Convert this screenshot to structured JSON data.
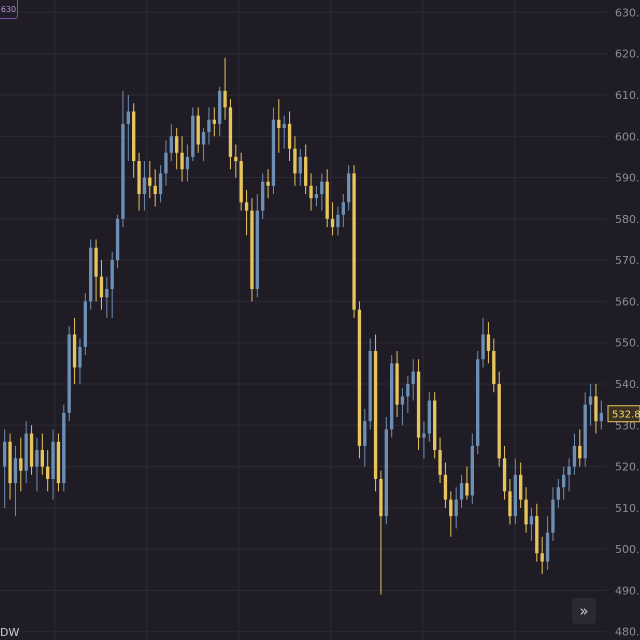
{
  "chart_data": {
    "type": "candlestick",
    "y_ticks": [
      "480.00",
      "490.00",
      "500.00",
      "510.00",
      "520.00",
      "530.00",
      "540.00",
      "550.00",
      "560.00",
      "570.00",
      "580.00",
      "590.00",
      "600.00",
      "610.00",
      "620.00",
      "630.00"
    ],
    "ylim": [
      478,
      633
    ],
    "grid": true,
    "colors": {
      "up": "#6e8fb4",
      "down": "#e8c45c",
      "background": "#1f1c25",
      "grid": "#2e2a35"
    },
    "last_price_label": "532.8",
    "candles": [
      {
        "o": 520,
        "h": 529,
        "l": 510,
        "c": 526
      },
      {
        "o": 526,
        "h": 528,
        "l": 512,
        "c": 516
      },
      {
        "o": 516,
        "h": 525,
        "l": 508,
        "c": 522
      },
      {
        "o": 522,
        "h": 527,
        "l": 514,
        "c": 519
      },
      {
        "o": 519,
        "h": 531,
        "l": 516,
        "c": 528
      },
      {
        "o": 528,
        "h": 530,
        "l": 518,
        "c": 520
      },
      {
        "o": 520,
        "h": 527,
        "l": 514,
        "c": 524
      },
      {
        "o": 524,
        "h": 528,
        "l": 518,
        "c": 520
      },
      {
        "o": 520,
        "h": 524,
        "l": 514,
        "c": 517
      },
      {
        "o": 517,
        "h": 529,
        "l": 512,
        "c": 526
      },
      {
        "o": 526,
        "h": 528,
        "l": 514,
        "c": 516
      },
      {
        "o": 516,
        "h": 535,
        "l": 514,
        "c": 533
      },
      {
        "o": 533,
        "h": 554,
        "l": 531,
        "c": 552
      },
      {
        "o": 552,
        "h": 556,
        "l": 540,
        "c": 544
      },
      {
        "o": 544,
        "h": 551,
        "l": 540,
        "c": 549
      },
      {
        "o": 549,
        "h": 562,
        "l": 547,
        "c": 560
      },
      {
        "o": 560,
        "h": 575,
        "l": 558,
        "c": 573
      },
      {
        "o": 573,
        "h": 575,
        "l": 560,
        "c": 566
      },
      {
        "o": 566,
        "h": 570,
        "l": 558,
        "c": 561
      },
      {
        "o": 561,
        "h": 566,
        "l": 556,
        "c": 563
      },
      {
        "o": 563,
        "h": 572,
        "l": 556,
        "c": 570
      },
      {
        "o": 570,
        "h": 581,
        "l": 568,
        "c": 580
      },
      {
        "o": 580,
        "h": 611,
        "l": 578,
        "c": 603
      },
      {
        "o": 603,
        "h": 610,
        "l": 594,
        "c": 606
      },
      {
        "o": 606,
        "h": 608,
        "l": 590,
        "c": 594
      },
      {
        "o": 594,
        "h": 596,
        "l": 582,
        "c": 586
      },
      {
        "o": 586,
        "h": 594,
        "l": 582,
        "c": 590
      },
      {
        "o": 590,
        "h": 594,
        "l": 585,
        "c": 588
      },
      {
        "o": 588,
        "h": 592,
        "l": 583,
        "c": 586
      },
      {
        "o": 586,
        "h": 593,
        "l": 584,
        "c": 591
      },
      {
        "o": 591,
        "h": 599,
        "l": 588,
        "c": 596
      },
      {
        "o": 596,
        "h": 603,
        "l": 594,
        "c": 600
      },
      {
        "o": 600,
        "h": 602,
        "l": 592,
        "c": 596
      },
      {
        "o": 596,
        "h": 600,
        "l": 589,
        "c": 592
      },
      {
        "o": 592,
        "h": 598,
        "l": 589,
        "c": 595
      },
      {
        "o": 595,
        "h": 607,
        "l": 594,
        "c": 605
      },
      {
        "o": 605,
        "h": 607,
        "l": 596,
        "c": 598
      },
      {
        "o": 598,
        "h": 602,
        "l": 594,
        "c": 601
      },
      {
        "o": 601,
        "h": 607,
        "l": 598,
        "c": 604
      },
      {
        "o": 604,
        "h": 607,
        "l": 600,
        "c": 603
      },
      {
        "o": 603,
        "h": 612,
        "l": 600,
        "c": 611
      },
      {
        "o": 611,
        "h": 619,
        "l": 604,
        "c": 607
      },
      {
        "o": 607,
        "h": 609,
        "l": 592,
        "c": 595
      },
      {
        "o": 595,
        "h": 598,
        "l": 590,
        "c": 594
      },
      {
        "o": 594,
        "h": 596,
        "l": 582,
        "c": 584
      },
      {
        "o": 584,
        "h": 587,
        "l": 576,
        "c": 582
      },
      {
        "o": 582,
        "h": 585,
        "l": 560,
        "c": 563
      },
      {
        "o": 563,
        "h": 586,
        "l": 561,
        "c": 582
      },
      {
        "o": 582,
        "h": 591,
        "l": 580,
        "c": 589
      },
      {
        "o": 589,
        "h": 592,
        "l": 585,
        "c": 588
      },
      {
        "o": 588,
        "h": 607,
        "l": 586,
        "c": 604
      },
      {
        "o": 604,
        "h": 609,
        "l": 596,
        "c": 602
      },
      {
        "o": 602,
        "h": 605,
        "l": 597,
        "c": 603
      },
      {
        "o": 603,
        "h": 606,
        "l": 594,
        "c": 597
      },
      {
        "o": 597,
        "h": 600,
        "l": 588,
        "c": 591
      },
      {
        "o": 591,
        "h": 597,
        "l": 588,
        "c": 595
      },
      {
        "o": 595,
        "h": 598,
        "l": 586,
        "c": 588
      },
      {
        "o": 588,
        "h": 591,
        "l": 582,
        "c": 585
      },
      {
        "o": 585,
        "h": 588,
        "l": 583,
        "c": 586
      },
      {
        "o": 586,
        "h": 591,
        "l": 582,
        "c": 589
      },
      {
        "o": 589,
        "h": 592,
        "l": 578,
        "c": 580
      },
      {
        "o": 580,
        "h": 584,
        "l": 576,
        "c": 578
      },
      {
        "o": 578,
        "h": 583,
        "l": 576,
        "c": 581
      },
      {
        "o": 581,
        "h": 586,
        "l": 578,
        "c": 584
      },
      {
        "o": 584,
        "h": 593,
        "l": 582,
        "c": 591
      },
      {
        "o": 591,
        "h": 593,
        "l": 556,
        "c": 558
      },
      {
        "o": 558,
        "h": 560,
        "l": 522,
        "c": 525
      },
      {
        "o": 525,
        "h": 534,
        "l": 520,
        "c": 531
      },
      {
        "o": 531,
        "h": 551,
        "l": 529,
        "c": 548
      },
      {
        "o": 548,
        "h": 552,
        "l": 514,
        "c": 517
      },
      {
        "o": 517,
        "h": 519,
        "l": 489,
        "c": 508
      },
      {
        "o": 508,
        "h": 532,
        "l": 506,
        "c": 529
      },
      {
        "o": 529,
        "h": 547,
        "l": 527,
        "c": 545
      },
      {
        "o": 545,
        "h": 548,
        "l": 532,
        "c": 535
      },
      {
        "o": 535,
        "h": 539,
        "l": 530,
        "c": 537
      },
      {
        "o": 537,
        "h": 542,
        "l": 533,
        "c": 540
      },
      {
        "o": 540,
        "h": 546,
        "l": 536,
        "c": 543
      },
      {
        "o": 543,
        "h": 546,
        "l": 524,
        "c": 527
      },
      {
        "o": 527,
        "h": 531,
        "l": 522,
        "c": 528
      },
      {
        "o": 528,
        "h": 538,
        "l": 526,
        "c": 536
      },
      {
        "o": 536,
        "h": 538,
        "l": 522,
        "c": 524
      },
      {
        "o": 524,
        "h": 527,
        "l": 516,
        "c": 518
      },
      {
        "o": 518,
        "h": 521,
        "l": 510,
        "c": 512
      },
      {
        "o": 512,
        "h": 514,
        "l": 503,
        "c": 508
      },
      {
        "o": 508,
        "h": 515,
        "l": 505,
        "c": 512
      },
      {
        "o": 512,
        "h": 518,
        "l": 510,
        "c": 516
      },
      {
        "o": 516,
        "h": 520,
        "l": 512,
        "c": 513
      },
      {
        "o": 513,
        "h": 528,
        "l": 511,
        "c": 525
      },
      {
        "o": 525,
        "h": 548,
        "l": 523,
        "c": 546
      },
      {
        "o": 546,
        "h": 556,
        "l": 544,
        "c": 552
      },
      {
        "o": 552,
        "h": 555,
        "l": 545,
        "c": 548
      },
      {
        "o": 548,
        "h": 551,
        "l": 538,
        "c": 540
      },
      {
        "o": 540,
        "h": 543,
        "l": 520,
        "c": 522
      },
      {
        "o": 522,
        "h": 525,
        "l": 512,
        "c": 514
      },
      {
        "o": 514,
        "h": 517,
        "l": 506,
        "c": 508
      },
      {
        "o": 508,
        "h": 522,
        "l": 506,
        "c": 518
      },
      {
        "o": 518,
        "h": 521,
        "l": 510,
        "c": 512
      },
      {
        "o": 512,
        "h": 515,
        "l": 504,
        "c": 506
      },
      {
        "o": 506,
        "h": 510,
        "l": 502,
        "c": 508
      },
      {
        "o": 508,
        "h": 511,
        "l": 497,
        "c": 499
      },
      {
        "o": 499,
        "h": 503,
        "l": 494,
        "c": 497
      },
      {
        "o": 497,
        "h": 508,
        "l": 495,
        "c": 504
      },
      {
        "o": 504,
        "h": 515,
        "l": 502,
        "c": 512
      },
      {
        "o": 512,
        "h": 517,
        "l": 510,
        "c": 515
      },
      {
        "o": 515,
        "h": 520,
        "l": 512,
        "c": 518
      },
      {
        "o": 518,
        "h": 522,
        "l": 514,
        "c": 520
      },
      {
        "o": 520,
        "h": 528,
        "l": 518,
        "c": 525
      },
      {
        "o": 525,
        "h": 529,
        "l": 520,
        "c": 522
      },
      {
        "o": 522,
        "h": 538,
        "l": 520,
        "c": 535
      },
      {
        "o": 535,
        "h": 540,
        "l": 530,
        "c": 537
      },
      {
        "o": 537,
        "h": 540,
        "l": 528,
        "c": 531
      },
      {
        "o": 531,
        "h": 536,
        "l": 529,
        "c": 533
      }
    ]
  },
  "ui": {
    "scroll_button_glyph": "»",
    "corner_badge_text": "630",
    "corner_text": "DW"
  }
}
